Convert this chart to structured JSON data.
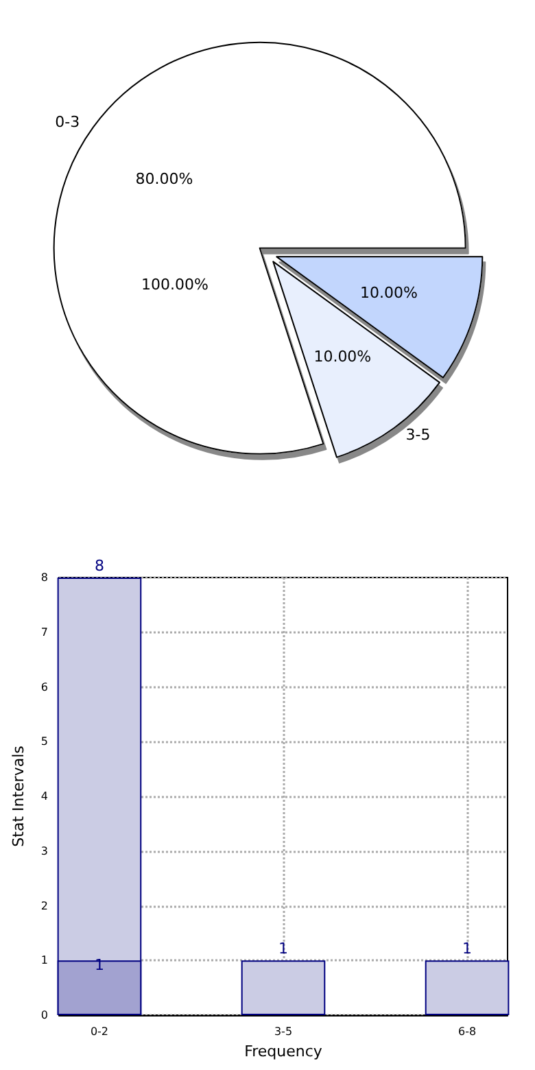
{
  "chart_data": [
    {
      "type": "pie",
      "categories": [
        "0-3",
        "3-5",
        null
      ],
      "values": [
        80,
        10,
        10
      ],
      "colors": [
        "#ffffff",
        "#e8effd",
        "#c2d6fd"
      ],
      "value_labels": [
        "80.00%",
        "10.00%",
        "10.00%"
      ],
      "annotations": [
        "100.00%"
      ]
    },
    {
      "type": "bar",
      "categories": [
        "0-2",
        "3-5",
        "6-8"
      ],
      "series": [
        {
          "color": "#cbcce4",
          "values": [
            8,
            1,
            1
          ]
        },
        {
          "color": "#a2a2d0",
          "values": [
            1,
            null,
            null
          ]
        }
      ],
      "xlabel": "Frequency",
      "ylabel": "Stat Intervals",
      "ylim": [
        0,
        8
      ],
      "yticks": [
        0,
        1,
        2,
        3,
        4,
        5,
        6,
        7,
        8
      ],
      "grid": true,
      "data_labels": true
    }
  ]
}
